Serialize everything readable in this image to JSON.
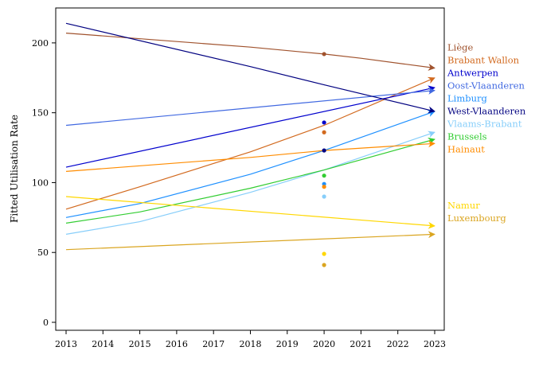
{
  "chart_data": {
    "type": "line",
    "title": "",
    "xlabel": "",
    "ylabel": "Fitted Utilisation Rate",
    "xlim": [
      2013,
      2023
    ],
    "ylim": [
      0,
      225
    ],
    "x_ticks": [
      "2013",
      "2014",
      "2015",
      "2016",
      "2017",
      "2018",
      "2019",
      "2020",
      "2021",
      "2022",
      "2023"
    ],
    "y_ticks": [
      "0",
      "50",
      "100",
      "150",
      "200"
    ],
    "grid": false,
    "legend": "right, labels at line ends",
    "series": [
      {
        "name": "Liège",
        "color": "#a0522d",
        "x": [
          2013,
          2018,
          2020,
          2021,
          2023
        ],
        "y": [
          207,
          197,
          192,
          189,
          182
        ],
        "observed": {
          "x": 2020,
          "y": 192
        }
      },
      {
        "name": "Brabant Wallon",
        "color": "#d2691e",
        "x": [
          2013,
          2015,
          2018,
          2020,
          2023
        ],
        "y": [
          81,
          97,
          122,
          141,
          175
        ],
        "observed": {
          "x": 2020,
          "y": 136
        }
      },
      {
        "name": "Antwerpen",
        "color": "#0000cd",
        "x": [
          2013,
          2023
        ],
        "y": [
          111,
          168
        ],
        "observed": {
          "x": 2020,
          "y": 143
        }
      },
      {
        "name": "Oost-Vlaanderen",
        "color": "#4169e1",
        "x": [
          2013,
          2023
        ],
        "y": [
          141,
          166
        ],
        "observed": {
          "x": 2020,
          "y": 123
        }
      },
      {
        "name": "Limburg",
        "color": "#1e90ff",
        "x": [
          2013,
          2015,
          2018,
          2020,
          2023
        ],
        "y": [
          75,
          85,
          106,
          123,
          151
        ],
        "observed": {
          "x": 2020,
          "y": 99
        }
      },
      {
        "name": "West-Vlaanderen",
        "color": "#000080",
        "x": [
          2013,
          2018,
          2020,
          2023
        ],
        "y": [
          214,
          183,
          170,
          151
        ],
        "observed": {
          "x": 2020,
          "y": 123
        }
      },
      {
        "name": "Vlaams-Brabant",
        "color": "#87cefa",
        "x": [
          2013,
          2015,
          2018,
          2020,
          2023
        ],
        "y": [
          63,
          72,
          93,
          109,
          136
        ],
        "observed": {
          "x": 2020,
          "y": 90
        }
      },
      {
        "name": "Brussels",
        "color": "#32cd32",
        "x": [
          2013,
          2015,
          2018,
          2020,
          2023
        ],
        "y": [
          71,
          79,
          96,
          109,
          131
        ],
        "observed": {
          "x": 2020,
          "y": 105
        }
      },
      {
        "name": "Hainaut",
        "color": "#ff8c00",
        "x": [
          2013,
          2018,
          2020,
          2023
        ],
        "y": [
          108,
          118,
          123,
          128
        ],
        "observed": {
          "x": 2020,
          "y": 97
        }
      },
      {
        "name": "Namur",
        "color": "#ffd700",
        "x": [
          2013,
          2023
        ],
        "y": [
          90,
          69
        ],
        "observed": {
          "x": 2020,
          "y": 49
        }
      },
      {
        "name": "Luxembourg",
        "color": "#daa520",
        "x": [
          2013,
          2023
        ],
        "y": [
          52,
          63
        ],
        "observed": {
          "x": 2020,
          "y": 41
        }
      }
    ]
  }
}
